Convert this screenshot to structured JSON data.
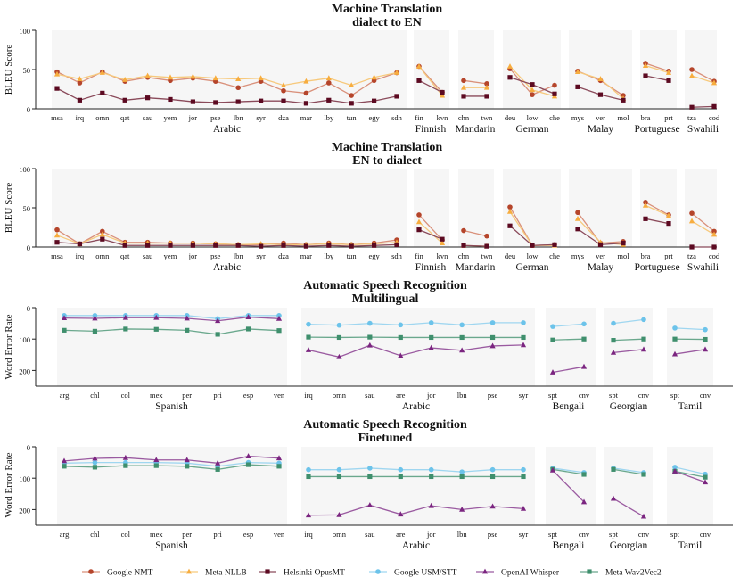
{
  "chart_data": [
    {
      "type": "line",
      "title": "Machine Translation",
      "subtitle": "dialect to EN",
      "ylabel": "BLEU Score",
      "ylim": [
        0,
        100
      ],
      "yticks": [
        0,
        50,
        100
      ],
      "inverted": false,
      "groups": [
        {
          "name": "Arabic",
          "categories": [
            "msa",
            "irq",
            "omn",
            "qat",
            "sau",
            "yem",
            "jor",
            "pse",
            "lbn",
            "syr",
            "dza",
            "mar",
            "lby",
            "tun",
            "egy",
            "sdn"
          ],
          "series": {
            "google_nmt": [
              47,
              33,
              47,
              35,
              40,
              36,
              39,
              35,
              27,
              35,
              23,
              20,
              33,
              17,
              36,
              46
            ],
            "meta_nllb": [
              44,
              38,
              46,
              37,
              42,
              40,
              41,
              39,
              38,
              39,
              30,
              35,
              39,
              30,
              40,
              46
            ],
            "helsinki_opusmt": [
              26,
              11,
              20,
              11,
              14,
              12,
              9,
              8,
              9,
              10,
              10,
              7,
              11,
              7,
              10,
              16
            ]
          }
        },
        {
          "name": "Finnish",
          "categories": [
            "fin",
            "kvn"
          ],
          "series": {
            "google_nmt": [
              54,
              21
            ],
            "meta_nllb": [
              54,
              17
            ],
            "helsinki_opusmt": [
              36,
              21
            ]
          }
        },
        {
          "name": "Mandarin",
          "categories": [
            "chn",
            "twn"
          ],
          "series": {
            "google_nmt": [
              36,
              32
            ],
            "meta_nllb": [
              27,
              27
            ],
            "helsinki_opusmt": [
              16,
              16
            ]
          }
        },
        {
          "name": "German",
          "categories": [
            "deu",
            "low",
            "che"
          ],
          "series": {
            "google_nmt": [
              51,
              18,
              30
            ],
            "meta_nllb": [
              54,
              24,
              16
            ],
            "helsinki_opusmt": [
              40,
              31,
              19
            ]
          }
        },
        {
          "name": "Malay",
          "categories": [
            "mys",
            "ver",
            "mol"
          ],
          "series": {
            "google_nmt": [
              48,
              36,
              17
            ],
            "meta_nllb": [
              47,
              38,
              13
            ],
            "helsinki_opusmt": [
              28,
              18,
              11
            ]
          }
        },
        {
          "name": "Portuguese",
          "categories": [
            "bra",
            "prt"
          ],
          "series": {
            "google_nmt": [
              58,
              48
            ],
            "meta_nllb": [
              55,
              46
            ],
            "helsinki_opusmt": [
              42,
              36
            ]
          }
        },
        {
          "name": "Swahili",
          "categories": [
            "tza",
            "cod"
          ],
          "series": {
            "google_nmt": [
              50,
              35
            ],
            "meta_nllb": [
              42,
              33
            ],
            "helsinki_opusmt": [
              2,
              3
            ]
          }
        }
      ]
    },
    {
      "type": "line",
      "title": "Machine Translation",
      "subtitle": "EN to dialect",
      "ylabel": "BLEU Score",
      "ylim": [
        0,
        100
      ],
      "yticks": [
        0,
        50,
        100
      ],
      "inverted": false,
      "groups": [
        {
          "name": "Arabic",
          "categories": [
            "msa",
            "irq",
            "omn",
            "qat",
            "sau",
            "yem",
            "jor",
            "pse",
            "lbn",
            "syr",
            "dza",
            "mar",
            "lby",
            "tun",
            "egy",
            "sdn"
          ],
          "series": {
            "google_nmt": [
              22,
              4,
              20,
              6,
              6,
              5,
              5,
              4,
              3,
              3,
              5,
              3,
              5,
              3,
              5,
              9
            ],
            "meta_nllb": [
              15,
              4,
              16,
              5,
              5,
              5,
              5,
              4,
              3,
              4,
              3,
              3,
              4,
              3,
              4,
              6
            ],
            "helsinki_opusmt": [
              6,
              4,
              10,
              2,
              2,
              2,
              2,
              2,
              2,
              1,
              2,
              1,
              2,
              1,
              2,
              3
            ]
          }
        },
        {
          "name": "Finnish",
          "categories": [
            "fin",
            "kvn"
          ],
          "series": {
            "google_nmt": [
              41,
              9
            ],
            "meta_nllb": [
              32,
              5
            ],
            "helsinki_opusmt": [
              22,
              10
            ]
          }
        },
        {
          "name": "Mandarin",
          "categories": [
            "chn",
            "twn"
          ],
          "series": {
            "google_nmt": [
              21,
              14
            ],
            "meta_nllb": [
              2,
              1
            ],
            "helsinki_opusmt": [
              2,
              1
            ]
          }
        },
        {
          "name": "German",
          "categories": [
            "deu",
            "low",
            "che"
          ],
          "series": {
            "google_nmt": [
              51,
              2,
              3
            ],
            "meta_nllb": [
              45,
              2,
              2
            ],
            "helsinki_opusmt": [
              27,
              2,
              3
            ]
          }
        },
        {
          "name": "Malay",
          "categories": [
            "mys",
            "ver",
            "mol"
          ],
          "series": {
            "google_nmt": [
              44,
              5,
              7
            ],
            "meta_nllb": [
              36,
              6,
              3
            ],
            "helsinki_opusmt": [
              23,
              3,
              5
            ]
          }
        },
        {
          "name": "Portuguese",
          "categories": [
            "bra",
            "prt"
          ],
          "series": {
            "google_nmt": [
              57,
              41
            ],
            "meta_nllb": [
              53,
              40
            ],
            "helsinki_opusmt": [
              36,
              30
            ]
          }
        },
        {
          "name": "Swahili",
          "categories": [
            "tza",
            "cod"
          ],
          "series": {
            "google_nmt": [
              43,
              20
            ],
            "meta_nllb": [
              33,
              16
            ],
            "helsinki_opusmt": [
              0,
              0
            ]
          }
        }
      ]
    },
    {
      "type": "line",
      "title": "Automatic Speech Recognition",
      "subtitle": "Multilingual",
      "ylabel": "Word Error Rate",
      "ylim": [
        0,
        250
      ],
      "yticks": [
        0,
        100,
        200
      ],
      "inverted": true,
      "groups": [
        {
          "name": "Spanish",
          "categories": [
            "arg",
            "chl",
            "col",
            "mex",
            "per",
            "pri",
            "esp",
            "ven"
          ],
          "series": {
            "google_usm_stt": [
              25,
              25,
              25,
              25,
              25,
              35,
              25,
              25
            ],
            "openai_whisper": [
              33,
              34,
              32,
              32,
              34,
              42,
              30,
              35
            ],
            "meta_wav2vec2": [
              72,
              75,
              68,
              69,
              72,
              85,
              68,
              73
            ]
          }
        },
        {
          "name": "Arabic",
          "categories": [
            "irq",
            "omn",
            "sau",
            "are",
            "jor",
            "lbn",
            "pse",
            "syr"
          ],
          "series": {
            "google_usm_stt": [
              53,
              56,
              50,
              55,
              48,
              55,
              48,
              48
            ],
            "openai_whisper": [
              135,
              157,
              120,
              153,
              128,
              136,
              122,
              119
            ],
            "meta_wav2vec2": [
              94,
              95,
              94,
              95,
              95,
              95,
              95,
              95
            ]
          }
        },
        {
          "name": "Bengali",
          "categories": [
            "spt",
            "cnv"
          ],
          "series": {
            "google_usm_stt": [
              60,
              52
            ],
            "openai_whisper": [
              206,
              188
            ],
            "meta_wav2vec2": [
              103,
              100
            ]
          }
        },
        {
          "name": "Georgian",
          "categories": [
            "spt",
            "cnv"
          ],
          "series": {
            "google_usm_stt": [
              50,
              38
            ],
            "openai_whisper": [
              143,
              133
            ],
            "meta_wav2vec2": [
              104,
              100
            ]
          }
        },
        {
          "name": "Tamil",
          "categories": [
            "spt",
            "cnv"
          ],
          "series": {
            "google_usm_stt": [
              65,
              70
            ],
            "openai_whisper": [
              148,
              133
            ],
            "meta_wav2vec2": [
              100,
              101
            ]
          }
        }
      ]
    },
    {
      "type": "line",
      "title": "Automatic Speech Recognition",
      "subtitle": "Finetuned",
      "ylabel": "Word Error Rate",
      "ylim": [
        0,
        250
      ],
      "yticks": [
        0,
        100,
        200
      ],
      "inverted": true,
      "groups": [
        {
          "name": "Spanish",
          "categories": [
            "arg",
            "chl",
            "col",
            "mex",
            "per",
            "pri",
            "esp",
            "ven"
          ],
          "series": {
            "google_usm_stt": [
              52,
              50,
              50,
              50,
              52,
              62,
              50,
              52
            ],
            "openai_whisper": [
              45,
              37,
              35,
              42,
              42,
              52,
              30,
              36
            ],
            "meta_wav2vec2": [
              62,
              65,
              60,
              60,
              62,
              72,
              57,
              62
            ]
          }
        },
        {
          "name": "Arabic",
          "categories": [
            "irq",
            "omn",
            "sau",
            "are",
            "jor",
            "lbn",
            "pse",
            "syr"
          ],
          "series": {
            "google_usm_stt": [
              73,
              73,
              68,
              73,
              73,
              80,
              73,
              73
            ],
            "openai_whisper": [
              218,
              217,
              186,
              215,
              188,
              200,
              190,
              197
            ],
            "meta_wav2vec2": [
              95,
              95,
              95,
              95,
              95,
              95,
              95,
              95
            ]
          }
        },
        {
          "name": "Bengali",
          "categories": [
            "spt",
            "cnv"
          ],
          "series": {
            "google_usm_stt": [
              68,
              82
            ],
            "openai_whisper": [
              75,
              176
            ],
            "meta_wav2vec2": [
              72,
              88
            ]
          }
        },
        {
          "name": "Georgian",
          "categories": [
            "spt",
            "cnv"
          ],
          "series": {
            "google_usm_stt": [
              68,
              82
            ],
            "openai_whisper": [
              165,
              222
            ],
            "meta_wav2vec2": [
              72,
              88
            ]
          }
        },
        {
          "name": "Tamil",
          "categories": [
            "spt",
            "cnv"
          ],
          "series": {
            "google_usm_stt": [
              65,
              87
            ],
            "openai_whisper": [
              78,
              113
            ],
            "meta_wav2vec2": [
              78,
              97
            ]
          }
        }
      ]
    }
  ],
  "legend": [
    {
      "key": "google_nmt",
      "label": "Google NMT",
      "color": "#b5452b",
      "marker": "circle",
      "line": "#d9907a"
    },
    {
      "key": "meta_nllb",
      "label": "Meta NLLB",
      "color": "#f7ad3f",
      "marker": "triangle",
      "line": "#f7c97c"
    },
    {
      "key": "helsinki_opusmt",
      "label": "Helsinki OpusMT",
      "color": "#5c0a21",
      "marker": "square",
      "line": "#8a4a5a"
    },
    {
      "key": "google_usm_stt",
      "label": "Google USM/STT",
      "color": "#6cc3ea",
      "marker": "circle",
      "line": "#9fd6f0"
    },
    {
      "key": "openai_whisper",
      "label": "OpenAI Whisper",
      "color": "#7b2580",
      "marker": "triangle",
      "line": "#9a5aa0"
    },
    {
      "key": "meta_wav2vec2",
      "label": "Meta Wav2Vec2",
      "color": "#3f8f6d",
      "marker": "square",
      "line": "#6aa88d"
    }
  ]
}
